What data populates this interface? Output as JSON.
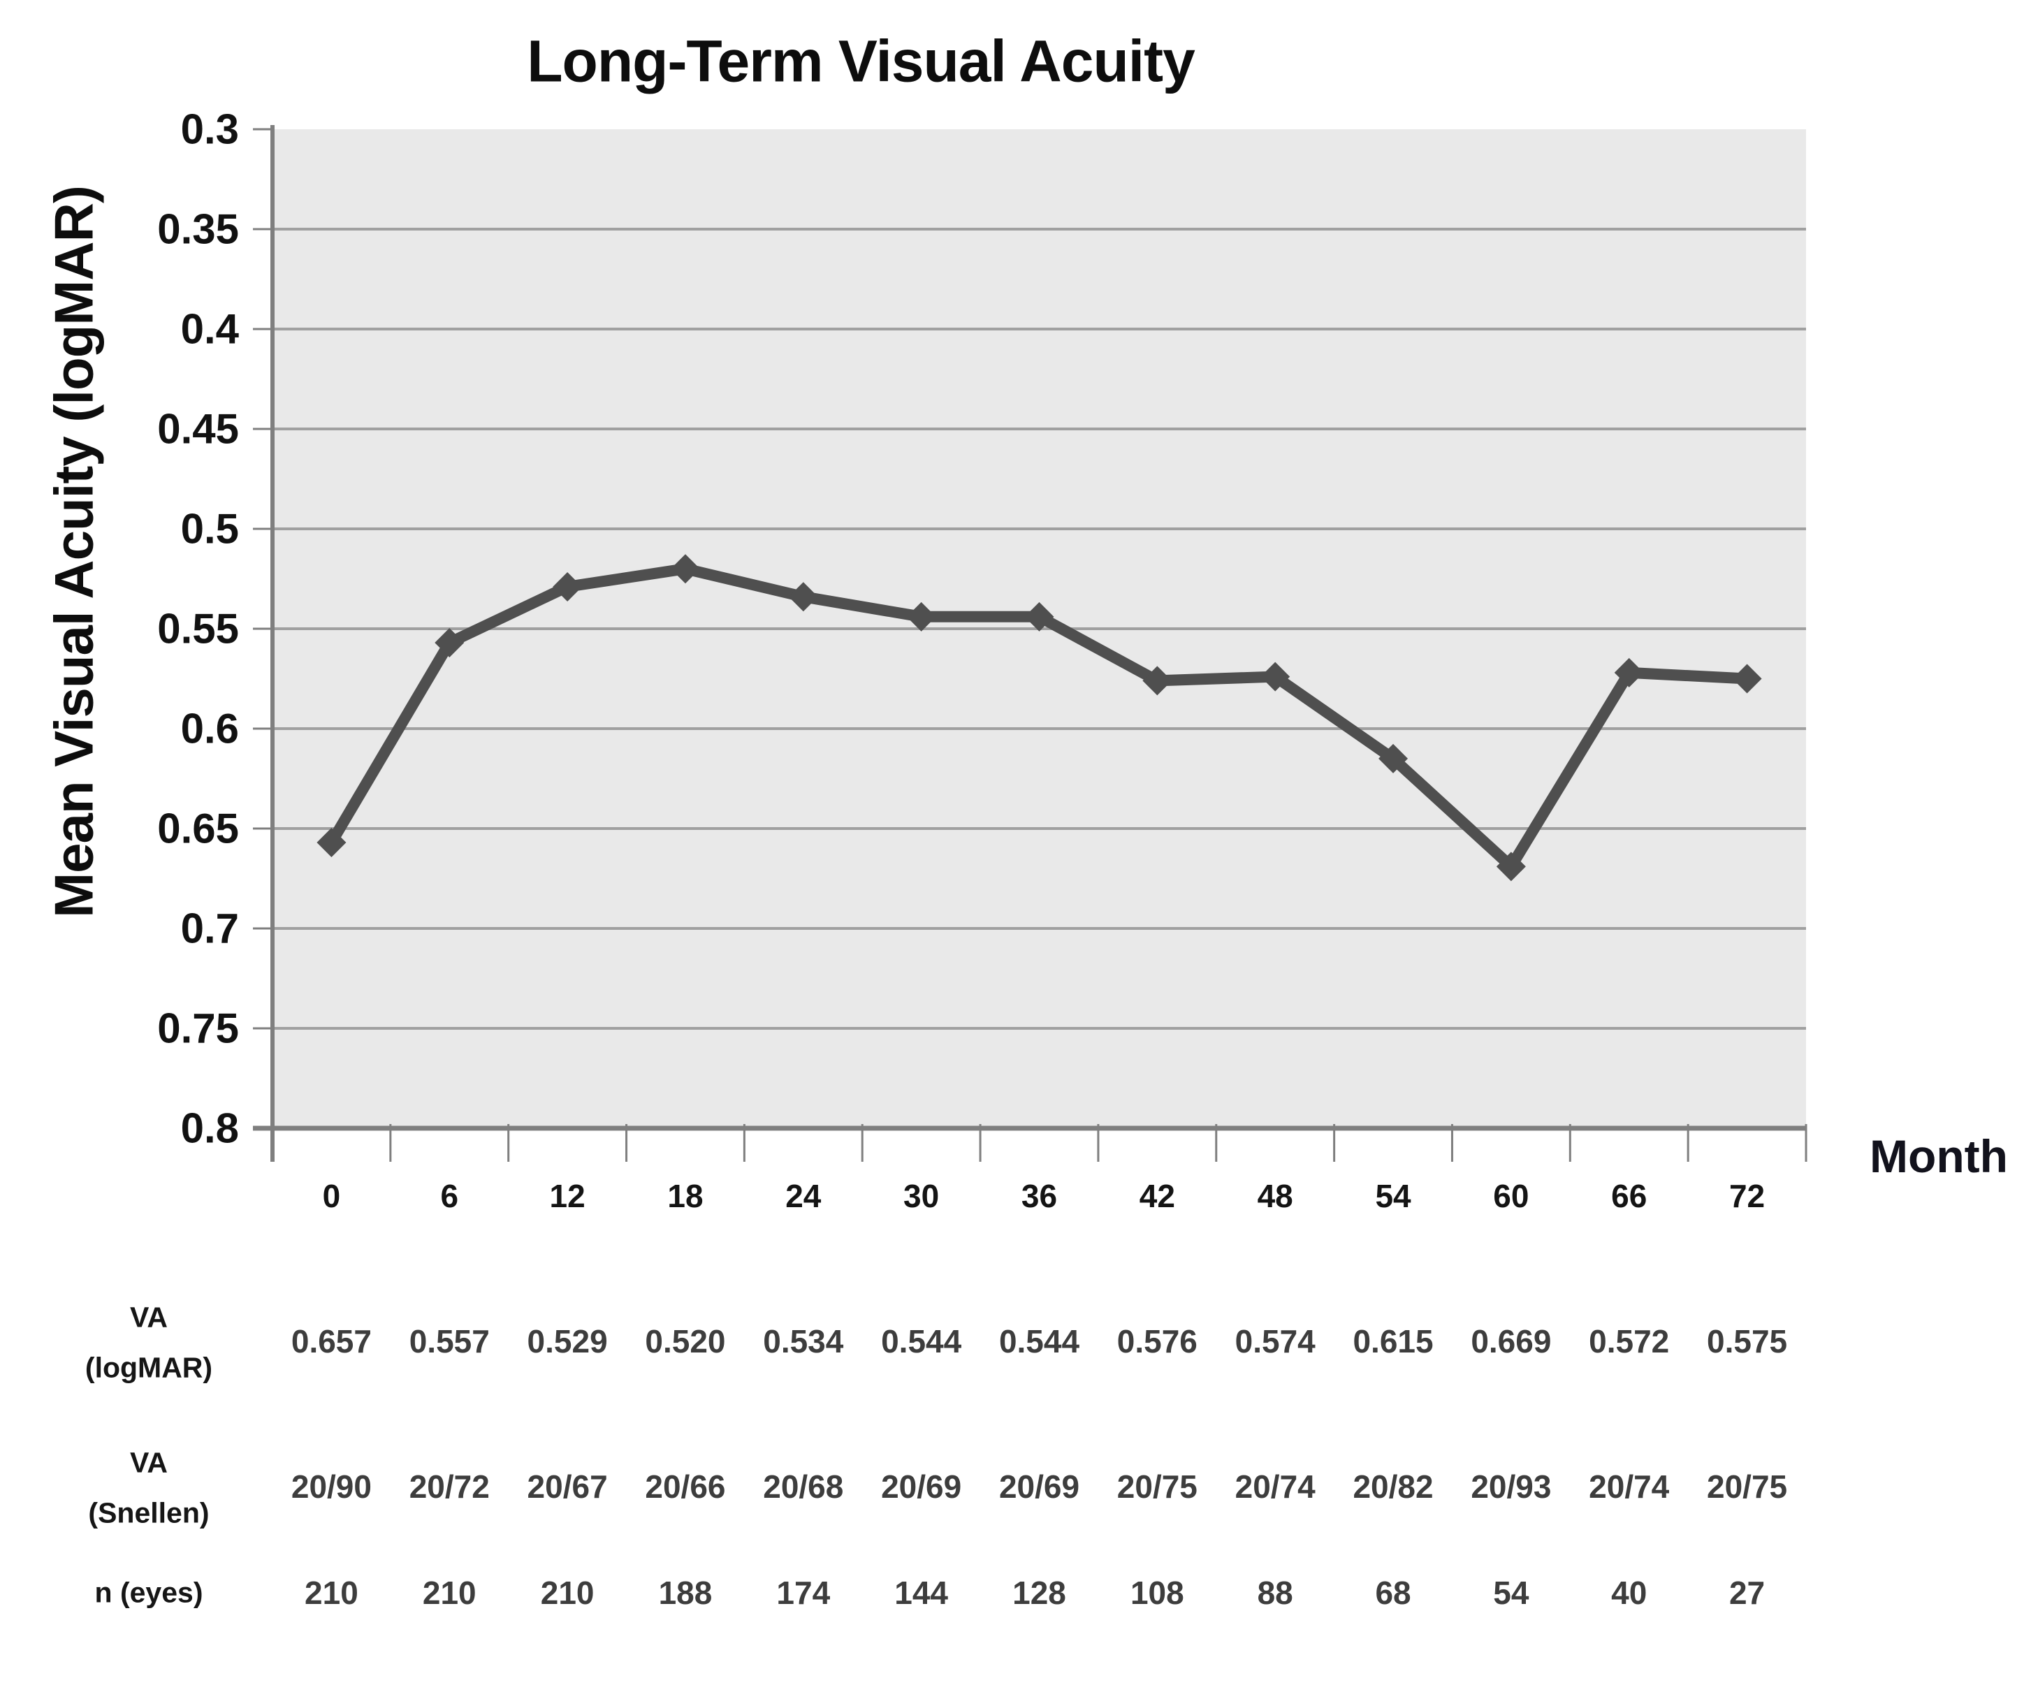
{
  "title": "Long-Term Visual Acuity",
  "chart_data": {
    "type": "line",
    "title": "Long-Term Visual Acuity",
    "xlabel": "Month",
    "ylabel": "Mean Visual Acuity (logMAR)",
    "categories": [
      0,
      6,
      12,
      18,
      24,
      30,
      36,
      42,
      48,
      54,
      60,
      66,
      72
    ],
    "values": [
      0.657,
      0.557,
      0.529,
      0.52,
      0.534,
      0.544,
      0.544,
      0.576,
      0.574,
      0.615,
      0.669,
      0.572,
      0.575
    ],
    "ylim": [
      0.3,
      0.8
    ],
    "y_axis_inverted": true,
    "y_tick_labels": [
      "0.3",
      "0.35",
      "0.4",
      "0.45",
      "0.5",
      "0.55",
      "0.6",
      "0.65",
      "0.7",
      "0.75",
      "0.8"
    ],
    "grid": "horizontal",
    "legend": "none",
    "marker": "diamond",
    "series_color": "#4f4f4f",
    "plot_bg_color": "#e9e9e9",
    "gridline_color": "#a0a0a0",
    "axis_color": "#7f7f7f"
  },
  "table": {
    "rows": [
      {
        "label_lines": [
          "VA",
          "(logMAR)"
        ],
        "values": [
          "0.657",
          "0.557",
          "0.529",
          "0.520",
          "0.534",
          "0.544",
          "0.544",
          "0.576",
          "0.574",
          "0.615",
          "0.669",
          "0.572",
          "0.575"
        ]
      },
      {
        "label_lines": [
          "VA",
          "(Snellen)"
        ],
        "values": [
          "20/90",
          "20/72",
          "20/67",
          "20/66",
          "20/68",
          "20/69",
          "20/69",
          "20/75",
          "20/74",
          "20/82",
          "20/93",
          "20/74",
          "20/75"
        ]
      },
      {
        "label_lines": [
          "n (eyes)"
        ],
        "values": [
          "210",
          "210",
          "210",
          "188",
          "174",
          "144",
          "128",
          "108",
          "88",
          "68",
          "54",
          "40",
          "27"
        ]
      }
    ]
  }
}
